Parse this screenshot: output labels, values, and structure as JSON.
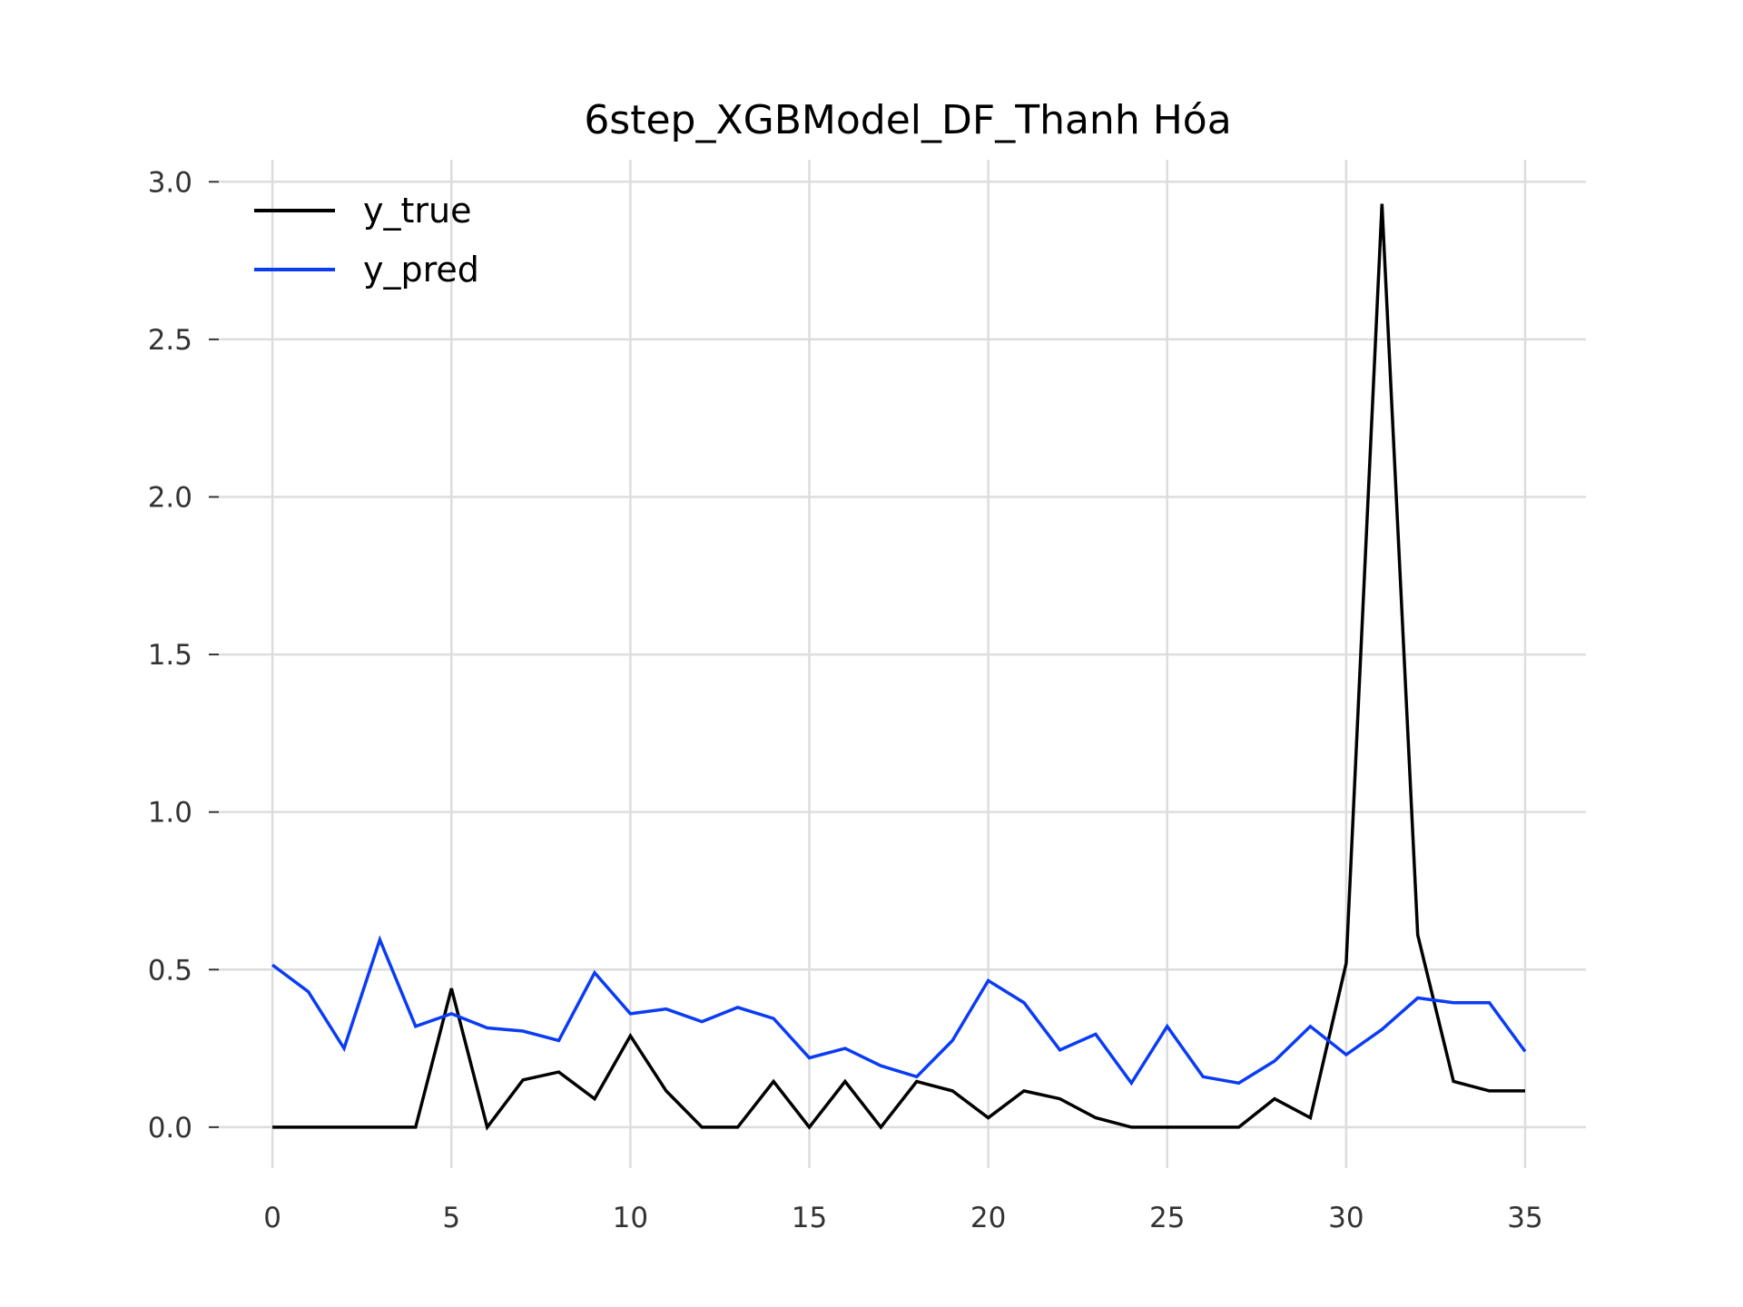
{
  "chart_data": {
    "type": "line",
    "title": "6step_XGBModel_DF_Thanh Hóa",
    "xlabel": "",
    "ylabel": "",
    "xlim": [
      -1.5,
      36.7
    ],
    "ylim": [
      -0.13,
      3.07
    ],
    "x_ticks": [
      0,
      5,
      10,
      15,
      20,
      25,
      30,
      35
    ],
    "y_ticks": [
      0.0,
      0.5,
      1.0,
      1.5,
      2.0,
      2.5,
      3.0
    ],
    "x_tick_labels": [
      "0",
      "5",
      "10",
      "15",
      "20",
      "25",
      "30",
      "35"
    ],
    "y_tick_labels": [
      "0.0",
      "0.5",
      "1.0",
      "1.5",
      "2.0",
      "2.5",
      "3.0"
    ],
    "grid": true,
    "legend_position": "top-left",
    "x": [
      0,
      1,
      2,
      3,
      4,
      5,
      6,
      7,
      8,
      9,
      10,
      11,
      12,
      13,
      14,
      15,
      16,
      17,
      18,
      19,
      20,
      21,
      22,
      23,
      24,
      25,
      26,
      27,
      28,
      29,
      30,
      31,
      32,
      33,
      34,
      35
    ],
    "series": [
      {
        "name": "y_true",
        "color": "#000000",
        "values": [
          0,
          0,
          0,
          0,
          0,
          0.44,
          0,
          0.15,
          0.175,
          0.09,
          0.29,
          0.115,
          0,
          0,
          0.145,
          0,
          0.145,
          0,
          0.145,
          0.115,
          0.03,
          0.115,
          0.09,
          0.03,
          0,
          0,
          0,
          0,
          0.09,
          0.03,
          0.52,
          2.93,
          0.61,
          0.145,
          0.115,
          0.115
        ]
      },
      {
        "name": "y_pred",
        "color": "#0a3cf5",
        "values": [
          0.515,
          0.43,
          0.25,
          0.595,
          0.32,
          0.36,
          0.315,
          0.305,
          0.275,
          0.49,
          0.36,
          0.375,
          0.335,
          0.38,
          0.345,
          0.22,
          0.25,
          0.195,
          0.16,
          0.275,
          0.465,
          0.395,
          0.245,
          0.295,
          0.14,
          0.32,
          0.16,
          0.14,
          0.21,
          0.32,
          0.23,
          0.31,
          0.41,
          0.395,
          0.395,
          0.24
        ]
      }
    ]
  }
}
